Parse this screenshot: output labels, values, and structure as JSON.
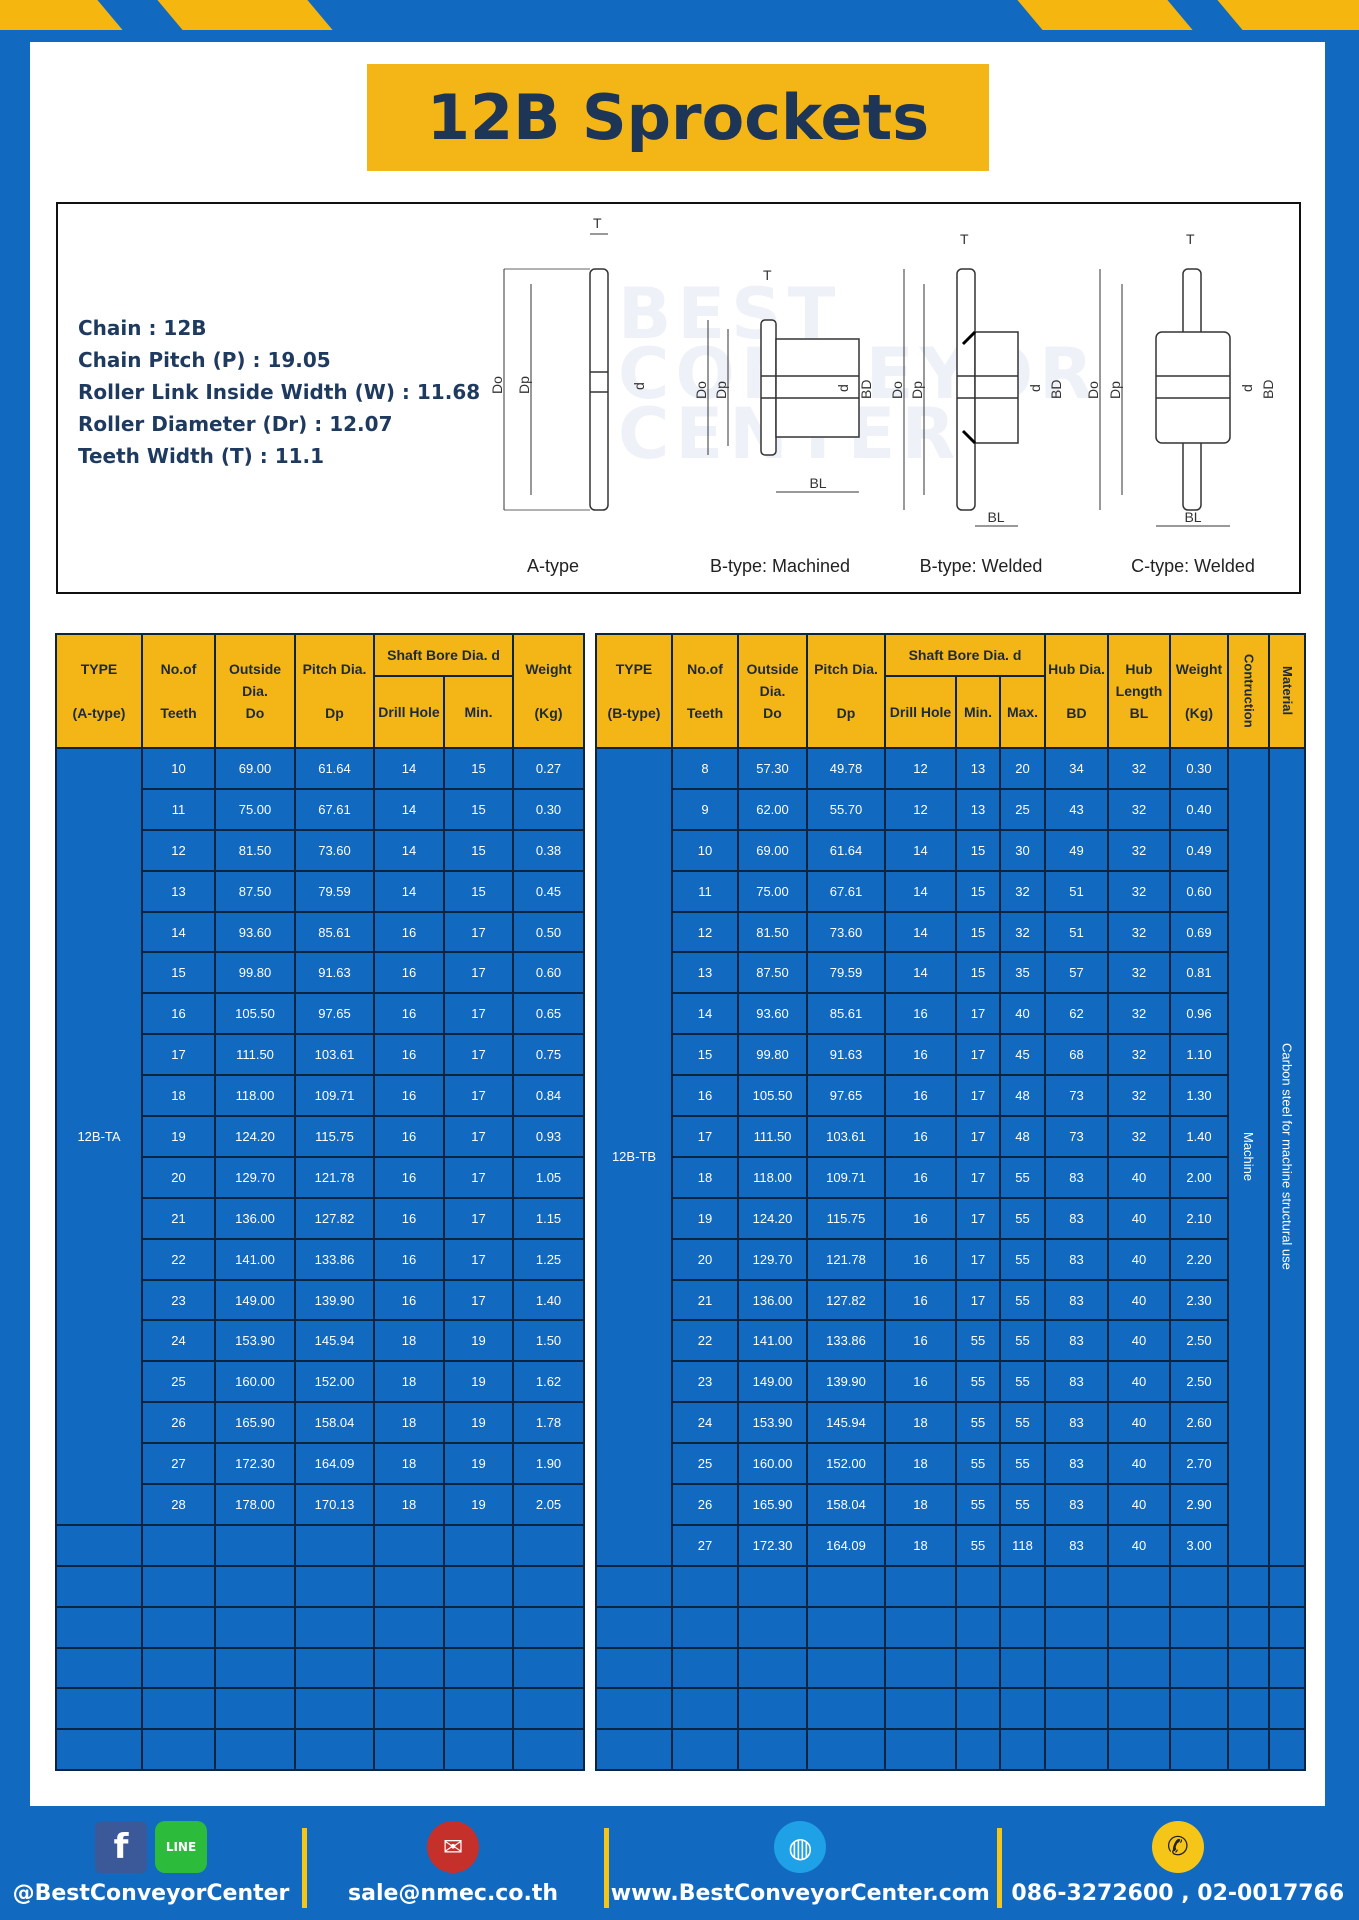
{
  "title": "12B Sprockets",
  "watermark": "BEST CONVEYOR CENTER",
  "specs": [
    "Chain  :  12B",
    "Chain Pitch (P)  :  19.05",
    "Roller Link Inside Width (W) : 11.68",
    "Roller Diameter (Dr)  : 12.07",
    "Teeth Width (T)  :  11.1"
  ],
  "diagram": {
    "captions": [
      "A-type",
      "B-type: Machined",
      "B-type: Welded",
      "C-type: Welded"
    ],
    "labels": {
      "T": "T",
      "Do": "Do",
      "Dp": "Dp",
      "d": "d",
      "BD": "BD",
      "BL": "BL"
    }
  },
  "colors": {
    "yellow": "#f4b617",
    "blue": "#1169c0",
    "navy": "#1d3557"
  },
  "table_a": {
    "headers": {
      "type": "TYPE",
      "type_sub": "(A-type)",
      "teeth": "No.of",
      "teeth_sub": "Teeth",
      "od": "Outside",
      "od2": "Dia.",
      "od3": "Do",
      "pd": "Pitch Dia.",
      "pd2": "Dp",
      "bore": "Shaft Bore Dia. d",
      "drill": "Drill Hole",
      "min": "Min.",
      "weight": "Weight",
      "weight_sub": "(Kg)"
    },
    "type_label": "12B-TA",
    "rows": [
      [
        "10",
        "69.00",
        "61.64",
        "14",
        "15",
        "0.27"
      ],
      [
        "11",
        "75.00",
        "67.61",
        "14",
        "15",
        "0.30"
      ],
      [
        "12",
        "81.50",
        "73.60",
        "14",
        "15",
        "0.38"
      ],
      [
        "13",
        "87.50",
        "79.59",
        "14",
        "15",
        "0.45"
      ],
      [
        "14",
        "93.60",
        "85.61",
        "16",
        "17",
        "0.50"
      ],
      [
        "15",
        "99.80",
        "91.63",
        "16",
        "17",
        "0.60"
      ],
      [
        "16",
        "105.50",
        "97.65",
        "16",
        "17",
        "0.65"
      ],
      [
        "17",
        "111.50",
        "103.61",
        "16",
        "17",
        "0.75"
      ],
      [
        "18",
        "118.00",
        "109.71",
        "16",
        "17",
        "0.84"
      ],
      [
        "19",
        "124.20",
        "115.75",
        "16",
        "17",
        "0.93"
      ],
      [
        "20",
        "129.70",
        "121.78",
        "16",
        "17",
        "1.05"
      ],
      [
        "21",
        "136.00",
        "127.82",
        "16",
        "17",
        "1.15"
      ],
      [
        "22",
        "141.00",
        "133.86",
        "16",
        "17",
        "1.25"
      ],
      [
        "23",
        "149.00",
        "139.90",
        "16",
        "17",
        "1.40"
      ],
      [
        "24",
        "153.90",
        "145.94",
        "18",
        "19",
        "1.50"
      ],
      [
        "25",
        "160.00",
        "152.00",
        "18",
        "19",
        "1.62"
      ],
      [
        "26",
        "165.90",
        "158.04",
        "18",
        "19",
        "1.78"
      ],
      [
        "27",
        "172.30",
        "164.09",
        "18",
        "19",
        "1.90"
      ],
      [
        "28",
        "178.00",
        "170.13",
        "18",
        "19",
        "2.05"
      ]
    ]
  },
  "table_b": {
    "headers": {
      "type": "TYPE",
      "type_sub": "(B-type)",
      "teeth": "No.of",
      "teeth_sub": "Teeth",
      "od": "Outside",
      "od2": "Dia.",
      "od3": "Do",
      "pd": "Pitch Dia.",
      "pd2": "Dp",
      "bore": "Shaft Bore Dia. d",
      "drill": "Drill Hole",
      "min": "Min.",
      "max": "Max.",
      "hub": "Hub Dia.",
      "hub2": "BD",
      "hubl": "Hub",
      "hubl2": "Length",
      "hubl3": "BL",
      "weight": "Weight",
      "weight_sub": "(Kg)",
      "construction": "Contruction",
      "material": "Material"
    },
    "type_label": "12B-TB",
    "construction": "Machine",
    "material": "Carbon steel for machine structural use",
    "rows": [
      [
        "8",
        "57.30",
        "49.78",
        "12",
        "13",
        "20",
        "34",
        "32",
        "0.30"
      ],
      [
        "9",
        "62.00",
        "55.70",
        "12",
        "13",
        "25",
        "43",
        "32",
        "0.40"
      ],
      [
        "10",
        "69.00",
        "61.64",
        "14",
        "15",
        "30",
        "49",
        "32",
        "0.49"
      ],
      [
        "11",
        "75.00",
        "67.61",
        "14",
        "15",
        "32",
        "51",
        "32",
        "0.60"
      ],
      [
        "12",
        "81.50",
        "73.60",
        "14",
        "15",
        "32",
        "51",
        "32",
        "0.69"
      ],
      [
        "13",
        "87.50",
        "79.59",
        "14",
        "15",
        "35",
        "57",
        "32",
        "0.81"
      ],
      [
        "14",
        "93.60",
        "85.61",
        "16",
        "17",
        "40",
        "62",
        "32",
        "0.96"
      ],
      [
        "15",
        "99.80",
        "91.63",
        "16",
        "17",
        "45",
        "68",
        "32",
        "1.10"
      ],
      [
        "16",
        "105.50",
        "97.65",
        "16",
        "17",
        "48",
        "73",
        "32",
        "1.30"
      ],
      [
        "17",
        "111.50",
        "103.61",
        "16",
        "17",
        "48",
        "73",
        "32",
        "1.40"
      ],
      [
        "18",
        "118.00",
        "109.71",
        "16",
        "17",
        "55",
        "83",
        "40",
        "2.00"
      ],
      [
        "19",
        "124.20",
        "115.75",
        "16",
        "17",
        "55",
        "83",
        "40",
        "2.10"
      ],
      [
        "20",
        "129.70",
        "121.78",
        "16",
        "17",
        "55",
        "83",
        "40",
        "2.20"
      ],
      [
        "21",
        "136.00",
        "127.82",
        "16",
        "17",
        "55",
        "83",
        "40",
        "2.30"
      ],
      [
        "22",
        "141.00",
        "133.86",
        "16",
        "55",
        "55",
        "83",
        "40",
        "2.50"
      ],
      [
        "23",
        "149.00",
        "139.90",
        "16",
        "55",
        "55",
        "83",
        "40",
        "2.50"
      ],
      [
        "24",
        "153.90",
        "145.94",
        "18",
        "55",
        "55",
        "83",
        "40",
        "2.60"
      ],
      [
        "25",
        "160.00",
        "152.00",
        "18",
        "55",
        "55",
        "83",
        "40",
        "2.70"
      ],
      [
        "26",
        "165.90",
        "158.04",
        "18",
        "55",
        "55",
        "83",
        "40",
        "2.90"
      ],
      [
        "27",
        "172.30",
        "164.09",
        "18",
        "55",
        "118",
        "83",
        "40",
        "3.00"
      ]
    ]
  },
  "footer": {
    "facebook": "@BestConveyorCenter",
    "line_icon": "LINE",
    "email": "sale@nmec.co.th",
    "website": "www.BestConveyorCenter.com",
    "phone": "086-3272600 , 02-0017766"
  }
}
